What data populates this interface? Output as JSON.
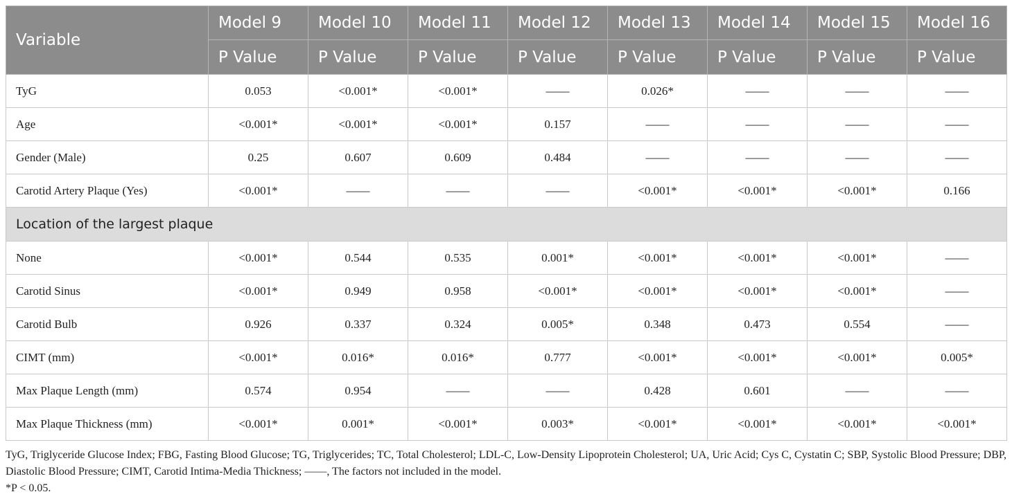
{
  "header": {
    "variable": "Variable",
    "models": [
      "Model 9",
      "Model 10",
      "Model 11",
      "Model 12",
      "Model 13",
      "Model 14",
      "Model 15",
      "Model 16"
    ],
    "sub_labels": [
      "P Value",
      "P Value",
      "P Value",
      "P Value",
      "P Value",
      "P Value",
      "P Value",
      "P Value"
    ]
  },
  "table": {
    "rows": [
      {
        "label": "TyG",
        "values": [
          "0.053",
          "<0.001*",
          "<0.001*",
          "——",
          "0.026*",
          "——",
          "——",
          "——"
        ]
      },
      {
        "label": "Age",
        "values": [
          "<0.001*",
          "<0.001*",
          "<0.001*",
          "0.157",
          "——",
          "——",
          "——",
          "——"
        ]
      },
      {
        "label": "Gender (Male)",
        "values": [
          "0.25",
          "0.607",
          "0.609",
          "0.484",
          "——",
          "——",
          "——",
          "——"
        ]
      },
      {
        "label": "Carotid Artery Plaque (Yes)",
        "values": [
          "<0.001*",
          "——",
          "——",
          "——",
          "<0.001*",
          "<0.001*",
          "<0.001*",
          "0.166"
        ]
      },
      {
        "section": "Location of the largest plaque"
      },
      {
        "label": "None",
        "values": [
          "<0.001*",
          "0.544",
          "0.535",
          "0.001*",
          "<0.001*",
          "<0.001*",
          "<0.001*",
          "——"
        ]
      },
      {
        "label": "Carotid Sinus",
        "values": [
          "<0.001*",
          "0.949",
          "0.958",
          "<0.001*",
          "<0.001*",
          "<0.001*",
          "<0.001*",
          "——"
        ]
      },
      {
        "label": "Carotid Bulb",
        "values": [
          "0.926",
          "0.337",
          "0.324",
          "0.005*",
          "0.348",
          "0.473",
          "0.554",
          "——"
        ]
      },
      {
        "label": "CIMT (mm)",
        "values": [
          "<0.001*",
          "0.016*",
          "0.016*",
          "0.777",
          "<0.001*",
          "<0.001*",
          "<0.001*",
          "0.005*"
        ]
      },
      {
        "label": "Max Plaque Length (mm)",
        "values": [
          "0.574",
          "0.954",
          "——",
          "——",
          "0.428",
          "0.601",
          "——",
          "——"
        ]
      },
      {
        "label": "Max Plaque Thickness (mm)",
        "values": [
          "<0.001*",
          "0.001*",
          "<0.001*",
          "0.003*",
          "<0.001*",
          "<0.001*",
          "<0.001*",
          "<0.001*"
        ]
      }
    ]
  },
  "notes": [
    "TyG, Triglyceride Glucose Index; FBG, Fasting Blood Glucose; TG, Triglycerides; TC, Total Cholesterol; LDL-C, Low-Density Lipoprotein Cholesterol; UA, Uric Acid; Cys C, Cystatin C; SBP, Systolic Blood Pressure; DBP, Diastolic Blood Pressure; CIMT, Carotid Intima-Media Thickness; ——, The factors not included in the model.",
    "*P < 0.05."
  ]
}
